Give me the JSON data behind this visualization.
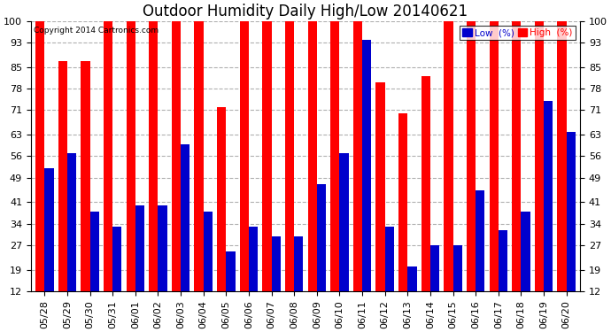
{
  "title": "Outdoor Humidity Daily High/Low 20140621",
  "copyright": "Copyright 2014 Cartronics.com",
  "legend_low_label": "Low  (%)",
  "legend_high_label": "High  (%)",
  "categories": [
    "05/28",
    "05/29",
    "05/30",
    "05/31",
    "06/01",
    "06/02",
    "06/03",
    "06/04",
    "06/05",
    "06/06",
    "06/07",
    "06/08",
    "06/09",
    "06/10",
    "06/11",
    "06/12",
    "06/13",
    "06/14",
    "06/15",
    "06/16",
    "06/17",
    "06/18",
    "06/19",
    "06/20"
  ],
  "high_values": [
    100,
    87,
    87,
    100,
    100,
    100,
    100,
    100,
    72,
    100,
    100,
    100,
    100,
    100,
    100,
    80,
    70,
    82,
    100,
    100,
    100,
    100,
    100,
    100
  ],
  "low_values": [
    52,
    57,
    38,
    33,
    40,
    40,
    60,
    38,
    25,
    33,
    30,
    30,
    47,
    57,
    94,
    33,
    20,
    27,
    27,
    45,
    32,
    38,
    74,
    64
  ],
  "ylim": [
    12,
    100
  ],
  "yticks": [
    12,
    19,
    27,
    34,
    41,
    49,
    56,
    63,
    71,
    78,
    85,
    93,
    100
  ],
  "bar_width": 0.4,
  "high_color": "#ff0000",
  "low_color": "#0000cc",
  "bg_color": "#ffffff",
  "grid_color": "#b0b0b0",
  "title_fontsize": 12,
  "tick_fontsize": 8
}
